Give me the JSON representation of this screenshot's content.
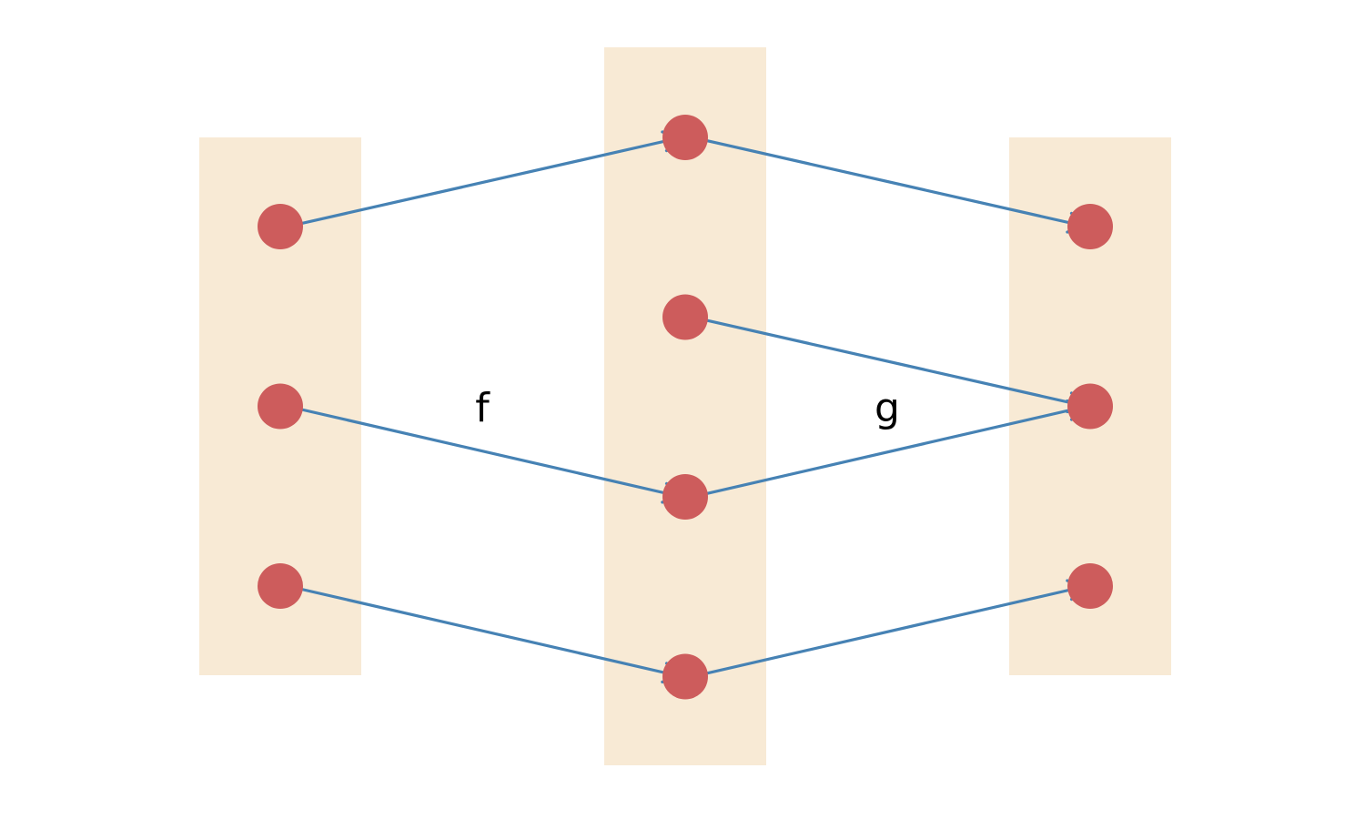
{
  "colors": {
    "set_background": "#f8ead5",
    "node": "#cd5c5c",
    "arrow": "#4682b4",
    "label": "#000000"
  },
  "labels": {
    "f": "f",
    "g": "g"
  },
  "sets": {
    "domain": {
      "element_count": 3
    },
    "middle": {
      "element_count": 4
    },
    "codomain": {
      "element_count": 3
    }
  },
  "mappings": {
    "f": [
      {
        "from": 1,
        "to": 1
      },
      {
        "from": 2,
        "to": 3
      },
      {
        "from": 3,
        "to": 4
      }
    ],
    "g": [
      {
        "from": 1,
        "to": 1
      },
      {
        "from": 2,
        "to": 2
      },
      {
        "from": 3,
        "to": 2
      },
      {
        "from": 4,
        "to": 3
      }
    ]
  }
}
